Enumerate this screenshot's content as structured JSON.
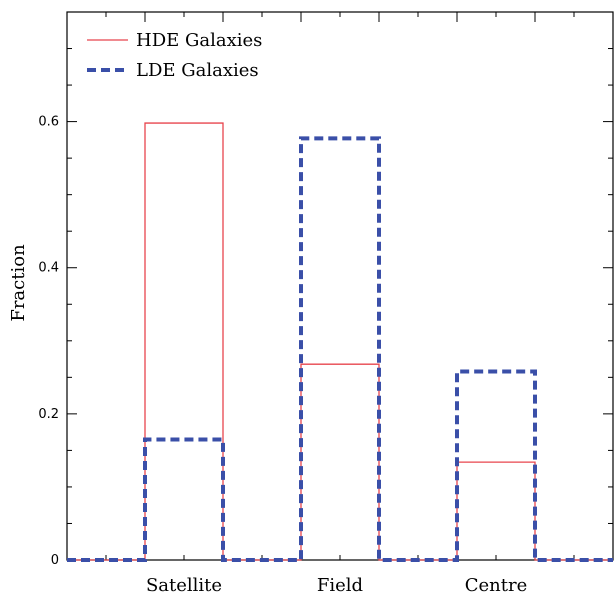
{
  "chart_data": {
    "type": "bar",
    "style": "step-histogram",
    "categories": [
      "Satellite",
      "Field",
      "Centre"
    ],
    "ylabel": "Fraction",
    "xlabel": "",
    "ylim": [
      0,
      0.75
    ],
    "yticks": [
      0,
      0.2,
      0.4,
      0.6
    ],
    "ytick_labels": [
      "0",
      "0.2",
      "0.4",
      "0.6"
    ],
    "grid": false,
    "legend_position": "top-left",
    "series": [
      {
        "name": "HDE Galaxies",
        "values": [
          0.598,
          0.268,
          0.134
        ],
        "color": "#e8454d",
        "line": "solid"
      },
      {
        "name": "LDE Galaxies",
        "values": [
          0.165,
          0.577,
          0.258
        ],
        "color": "#3a4fa8",
        "line": "dashed"
      }
    ]
  }
}
